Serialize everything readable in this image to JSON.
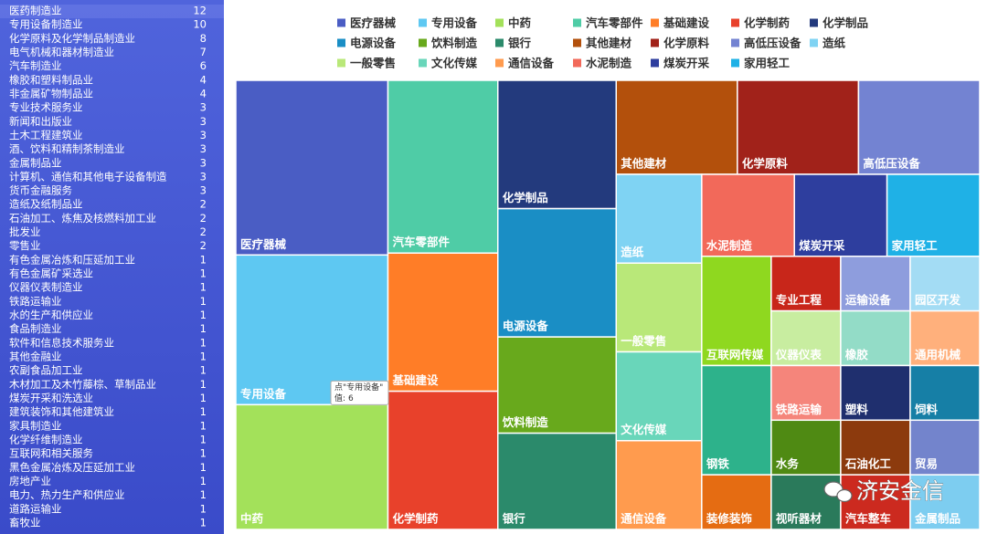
{
  "industry_list": {
    "rows": [
      [
        "医药制造业",
        12
      ],
      [
        "专用设备制造业",
        10
      ],
      [
        "化学原料及化学制品制造业",
        8
      ],
      [
        "电气机械和器材制造业",
        7
      ],
      [
        "汽车制造业",
        6
      ],
      [
        "橡胶和塑料制品业",
        4
      ],
      [
        "非金属矿物制品业",
        4
      ],
      [
        "专业技术服务业",
        3
      ],
      [
        "新闻和出版业",
        3
      ],
      [
        "土木工程建筑业",
        3
      ],
      [
        "酒、饮料和精制茶制造业",
        3
      ],
      [
        "金属制品业",
        3
      ],
      [
        "计算机、通信和其他电子设备制造",
        3
      ],
      [
        "货币金融服务",
        3
      ],
      [
        "造纸及纸制品业",
        2
      ],
      [
        "石油加工、炼焦及核燃料加工业",
        2
      ],
      [
        "批发业",
        2
      ],
      [
        "零售业",
        2
      ],
      [
        "有色金属冶炼和压延加工业",
        1
      ],
      [
        "有色金属矿采选业",
        1
      ],
      [
        "仪器仪表制造业",
        1
      ],
      [
        "铁路运输业",
        1
      ],
      [
        "水的生产和供应业",
        1
      ],
      [
        "食品制造业",
        1
      ],
      [
        "软件和信息技术服务业",
        1
      ],
      [
        "其他金融业",
        1
      ],
      [
        "农副食品加工业",
        1
      ],
      [
        "木材加工及木竹藤棕、草制品业",
        1
      ],
      [
        "煤炭开采和洗选业",
        1
      ],
      [
        "建筑装饰和其他建筑业",
        1
      ],
      [
        "家具制造业",
        1
      ],
      [
        "化学纤维制造业",
        1
      ],
      [
        "互联网和相关服务",
        1
      ],
      [
        "黑色金属冶炼及压延加工业",
        1
      ],
      [
        "房地产业",
        1
      ],
      [
        "电力、热力生产和供应业",
        1
      ],
      [
        "道路运输业",
        1
      ],
      [
        "畜牧业",
        1
      ]
    ]
  },
  "chart_data": {
    "type": "treemap",
    "series": [
      {
        "name": "医疗器械",
        "value": 7,
        "color": "#4a5dc4",
        "in_legend": true
      },
      {
        "name": "专用设备",
        "value": 6,
        "color": "#5ec8f2",
        "in_legend": true,
        "tooltip": {
          "title": "点\"专用设备\"",
          "label": "值:"
        }
      },
      {
        "name": "中药",
        "value": 5,
        "color": "#a3e15a",
        "in_legend": true
      },
      {
        "name": "汽车零部件",
        "value": 5,
        "color": "#4fcca6",
        "in_legend": true
      },
      {
        "name": "基础建设",
        "value": 4,
        "color": "#ff7d27",
        "in_legend": true
      },
      {
        "name": "化学制药",
        "value": 4,
        "color": "#e8412b",
        "in_legend": true
      },
      {
        "name": "化学制品",
        "value": 4,
        "color": "#233a7d",
        "in_legend": true
      },
      {
        "name": "电源设备",
        "value": 4,
        "color": "#1a8ec5",
        "in_legend": true
      },
      {
        "name": "饮料制造",
        "value": 3,
        "color": "#68a91c",
        "in_legend": true
      },
      {
        "name": "银行",
        "value": 3,
        "color": "#2b8a6b",
        "in_legend": true
      },
      {
        "name": "其他建材",
        "value": 3,
        "color": "#b3500c",
        "in_legend": true
      },
      {
        "name": "化学原料",
        "value": 3,
        "color": "#a1221a",
        "in_legend": true
      },
      {
        "name": "高低压设备",
        "value": 3,
        "color": "#7383d2",
        "in_legend": true
      },
      {
        "name": "造纸",
        "value": 2,
        "color": "#7fd3f3",
        "in_legend": true
      },
      {
        "name": "一般零售",
        "value": 2,
        "color": "#b9e879",
        "in_legend": true
      },
      {
        "name": "文化传媒",
        "value": 2,
        "color": "#69d6ba",
        "in_legend": true
      },
      {
        "name": "通信设备",
        "value": 2,
        "color": "#ff9b4e",
        "in_legend": true
      },
      {
        "name": "水泥制造",
        "value": 2,
        "color": "#f2695a",
        "in_legend": true
      },
      {
        "name": "煤炭开采",
        "value": 2,
        "color": "#2e3e9e",
        "in_legend": true
      },
      {
        "name": "家用轻工",
        "value": 2,
        "color": "#1fb1e6",
        "in_legend": true
      },
      {
        "name": "互联网传媒",
        "value": 2,
        "color": "#8fd81f",
        "in_legend": false
      },
      {
        "name": "钢铁",
        "value": 2,
        "color": "#2db28b",
        "in_legend": false
      },
      {
        "name": "装修装饰",
        "value": 1,
        "color": "#e56c12",
        "in_legend": false
      },
      {
        "name": "专业工程",
        "value": 1,
        "color": "#c8261a",
        "in_legend": false
      },
      {
        "name": "运输设备",
        "value": 1,
        "color": "#8e9ddd",
        "in_legend": false
      },
      {
        "name": "园区开发",
        "value": 1,
        "color": "#a3dcf4",
        "in_legend": false
      },
      {
        "name": "仪器仪表",
        "value": 1,
        "color": "#c8eda0",
        "in_legend": false
      },
      {
        "name": "橡胶",
        "value": 1,
        "color": "#93dcc7",
        "in_legend": false
      },
      {
        "name": "通用机械",
        "value": 1,
        "color": "#ffb07c",
        "in_legend": false
      },
      {
        "name": "铁路运输",
        "value": 1,
        "color": "#f5857b",
        "in_legend": false
      },
      {
        "name": "水务",
        "value": 1,
        "color": "#4f8a13",
        "in_legend": false
      },
      {
        "name": "视听器材",
        "value": 1,
        "color": "#2a7a5b",
        "in_legend": false
      },
      {
        "name": "塑料",
        "value": 1,
        "color": "#1f2f6e",
        "in_legend": false
      },
      {
        "name": "饲料",
        "value": 1,
        "color": "#167fa6",
        "in_legend": false
      },
      {
        "name": "石油化工",
        "value": 1,
        "color": "#8c3a0d",
        "in_legend": false
      },
      {
        "name": "汽车整车",
        "value": 1,
        "color": "#cc2a1f",
        "in_legend": false
      },
      {
        "name": "贸易",
        "value": 1,
        "color": "#7384cc",
        "in_legend": false
      },
      {
        "name": "金属制品",
        "value": 1,
        "color": "#7dcdf0",
        "in_legend": false
      }
    ]
  },
  "watermark": "济安金信"
}
